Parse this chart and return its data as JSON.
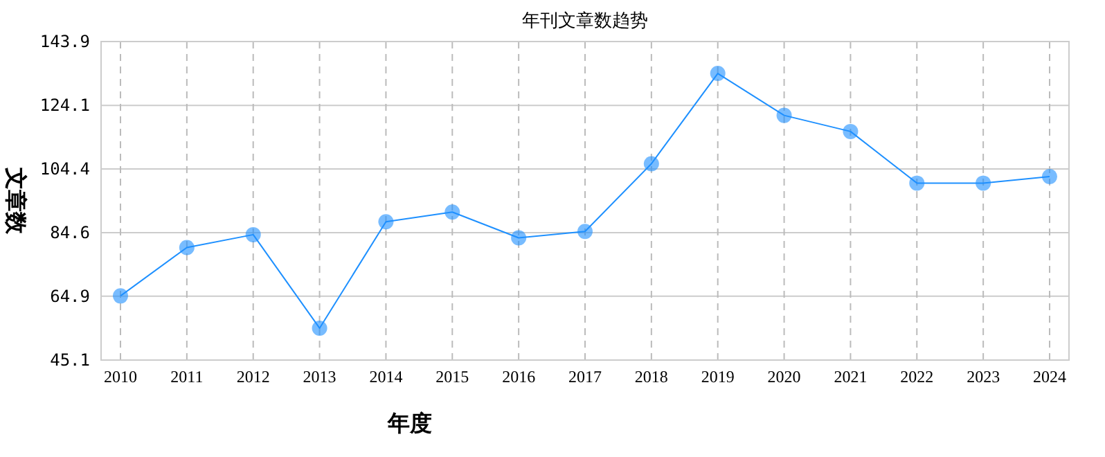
{
  "chart_data": {
    "type": "line",
    "title": "年刊文章数趋势",
    "xlabel": "年度",
    "ylabel": "文章数",
    "categories": [
      "2010",
      "2011",
      "2012",
      "2013",
      "2014",
      "2015",
      "2016",
      "2017",
      "2018",
      "2019",
      "2020",
      "2021",
      "2022",
      "2023",
      "2024"
    ],
    "series": [
      {
        "color": "#1e90ff",
        "values": [
          65,
          80,
          84,
          55,
          88,
          91,
          83,
          85,
          106,
          134,
          121,
          116,
          100,
          100,
          102
        ]
      }
    ],
    "ylim": [
      45.1,
      143.9
    ],
    "yticks": [
      45.1,
      64.9,
      84.6,
      104.4,
      124.1,
      143.9
    ],
    "grid": true,
    "marker": "circle",
    "line_style": "solid"
  }
}
